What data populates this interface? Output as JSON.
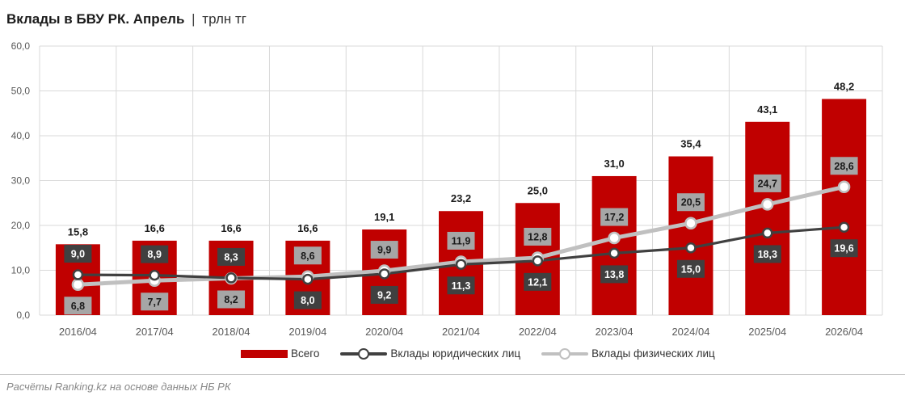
{
  "title": {
    "main": "Вклады в БВУ РК. Апрель",
    "separator": "|",
    "unit": "трлн тг"
  },
  "source": "Расчёты Ranking.kz на основе данных НБ РК",
  "colors": {
    "total": "#c00000",
    "legal": "#404040",
    "individuals": "#c0c0c0",
    "grid": "#d9d9d9",
    "axis_text": "#595959",
    "label_dark_bg": "#404040",
    "label_light_bg": "#a6a6a6"
  },
  "chart_data": {
    "type": "bar",
    "title": "Вклады в БВУ РК. Апрель",
    "categories": [
      "2016/04",
      "2017/04",
      "2018/04",
      "2019/04",
      "2020/04",
      "2021/04",
      "2022/04",
      "2023/04",
      "2024/04",
      "2025/04",
      "2026/04"
    ],
    "ylim": [
      0,
      60
    ],
    "yticks": [
      "0,0",
      "10,0",
      "20,0",
      "30,0",
      "40,0",
      "50,0",
      "60,0"
    ],
    "grid": true,
    "legend_position": "bottom",
    "series": [
      {
        "key": "total",
        "name": "Всего",
        "kind": "bar",
        "values": [
          15.8,
          16.6,
          16.6,
          16.6,
          19.1,
          23.2,
          25.0,
          31.0,
          35.4,
          43.1,
          48.2
        ],
        "labels": [
          "15,8",
          "16,6",
          "16,6",
          "16,6",
          "19,1",
          "23,2",
          "25,0",
          "31,0",
          "35,4",
          "43,1",
          "48,2"
        ]
      },
      {
        "key": "legal",
        "name": "Вклады юридических лиц",
        "kind": "line",
        "values": [
          9.0,
          8.9,
          8.3,
          8.0,
          9.2,
          11.3,
          12.1,
          13.8,
          15.0,
          18.3,
          19.6
        ],
        "labels": [
          "9,0",
          "8,9",
          "8,3",
          "8,0",
          "9,2",
          "11,3",
          "12,1",
          "13,8",
          "15,0",
          "18,3",
          "19,6"
        ]
      },
      {
        "key": "individuals",
        "name": "Вклады физических лиц",
        "kind": "line",
        "values": [
          6.8,
          7.7,
          8.2,
          8.6,
          9.9,
          11.9,
          12.8,
          17.2,
          20.5,
          24.7,
          28.6
        ],
        "labels": [
          "6,8",
          "7,7",
          "8,2",
          "8,6",
          "9,9",
          "11,9",
          "12,8",
          "17,2",
          "20,5",
          "24,7",
          "28,6"
        ]
      }
    ]
  }
}
